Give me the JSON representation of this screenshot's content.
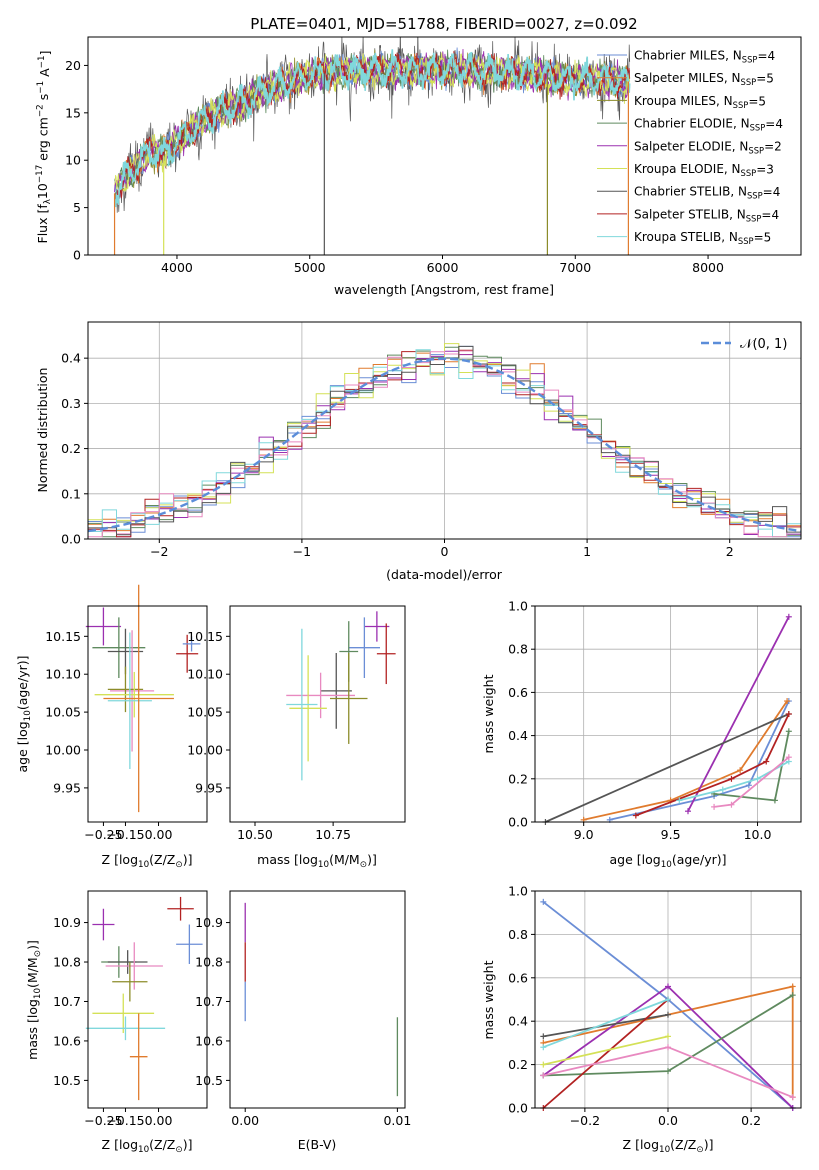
{
  "colors": [
    "#6b8ed6",
    "#e07b2e",
    "#8c8c2a",
    "#5f8a5f",
    "#9b30b0",
    "#d4e157",
    "#555555",
    "#b22222",
    "#80d8dc",
    "#e889c0"
  ],
  "chart_data": [
    {
      "type": "line",
      "title": "PLATE=0401, MJD=51788, FIBERID=0027, z=0.092",
      "xlabel": "wavelength [Angstrom, rest frame]",
      "ylabel": "Flux [f_λ10^-17 erg cm^-2 s^-1 A^-1]",
      "xlim": [
        3330,
        8700
      ],
      "ylim": [
        0,
        23
      ],
      "xticks": [
        "4000",
        "5000",
        "6000",
        "7000",
        "8000"
      ],
      "yticks": [
        "0",
        "5",
        "10",
        "15",
        "20"
      ],
      "legend_position": "right",
      "legend": [
        "Chabrier MILES, N_SSP=4",
        "Salpeter MILES, N_SSP=5",
        "Kroupa MILES, N_SSP=5",
        "Chabrier ELODIE, N_SSP=4",
        "Salpeter ELODIE, N_SSP=2",
        "Kroupa ELODIE, N_SSP=3",
        "Chabrier STELIB, N_SSP=4",
        "Salpeter STELIB, N_SSP=4",
        "Kroupa STELIB, N_SSP=5"
      ],
      "series_shape_approx": {
        "x": [
          3530,
          3600,
          3700,
          3800,
          3900,
          4000,
          4100,
          4200,
          4300,
          4400,
          4500,
          4600,
          4700,
          4800,
          4900,
          5000,
          5200,
          5400,
          5600,
          5800,
          6000,
          6200,
          6400,
          6600,
          6800,
          7000,
          7200,
          7400
        ],
        "y": [
          6.5,
          8,
          9.5,
          11,
          10.5,
          12,
          13,
          14.2,
          15,
          15.5,
          16,
          17,
          17.5,
          18,
          18.5,
          19,
          19.3,
          19.5,
          19.5,
          19.4,
          19.5,
          19.5,
          19.3,
          19.2,
          18.8,
          18.5,
          18.5,
          18.3
        ]
      }
    },
    {
      "type": "histogram",
      "xlabel": "(data-model)/error",
      "ylabel": "Normed distribution",
      "xlim": [
        -2.5,
        2.5
      ],
      "ylim": [
        0,
        0.48
      ],
      "xticks": [
        "−2",
        "−1",
        "0",
        "1",
        "2"
      ],
      "yticks": [
        "0.0",
        "0.1",
        "0.2",
        "0.3",
        "0.4"
      ],
      "grid": true,
      "legend": [
        "𝒩(0, 1)"
      ],
      "legend_position": "top-right",
      "reference_curve": "standard normal pdf"
    },
    {
      "type": "scatter",
      "xlabel": "Z [log10(Z/Z⊙)]",
      "ylabel": "age  [log10(age/yr)]",
      "xlim": [
        -0.32,
        0.22
      ],
      "ylim": [
        9.905,
        10.19
      ],
      "xticks": [
        "−0.25",
        "−0.15",
        "0.00"
      ],
      "yticks": [
        "9.95",
        "10.00",
        "10.05",
        "10.10",
        "10.15"
      ],
      "points": [
        {
          "x": -0.25,
          "y": 10.163,
          "xerr": 0.08,
          "yerr": 0.025
        },
        {
          "x": 0.13,
          "y": 10.127,
          "xerr": 0.05,
          "yerr": 0.025
        },
        {
          "x": 0.15,
          "y": 10.14,
          "xerr": 0.04,
          "yerr": 0.01
        },
        {
          "x": -0.18,
          "y": 10.135,
          "xerr": 0.12,
          "yerr": 0.04
        },
        {
          "x": -0.15,
          "y": 10.13,
          "xerr": 0.08,
          "yerr": 0.03
        },
        {
          "x": -0.12,
          "y": 10.078,
          "xerr": 0.1,
          "yerr": 0.08
        },
        {
          "x": -0.15,
          "y": 10.08,
          "xerr": 0.08,
          "yerr": 0.03
        },
        {
          "x": -0.11,
          "y": 10.073,
          "xerr": 0.18,
          "yerr": 0.03
        },
        {
          "x": -0.13,
          "y": 10.065,
          "xerr": 0.1,
          "yerr": 0.09
        },
        {
          "x": -0.09,
          "y": 10.068,
          "xerr": 0.16,
          "yerr": 0.15
        }
      ]
    },
    {
      "type": "scatter",
      "xlabel": "mass [log10(M/M⊙)]",
      "ylabel": "",
      "xlim": [
        10.42,
        10.98
      ],
      "ylim": [
        9.905,
        10.19
      ],
      "xticks": [
        "10.50",
        "10.75"
      ],
      "yticks": [
        "9.95",
        "10.00",
        "10.05",
        "10.10",
        "10.15"
      ],
      "points": [
        {
          "x": 10.89,
          "y": 10.163,
          "xerr": 0.04,
          "yerr": 0.02
        },
        {
          "x": 10.92,
          "y": 10.127,
          "xerr": 0.03,
          "yerr": 0.04
        },
        {
          "x": 10.85,
          "y": 10.135,
          "xerr": 0.05,
          "yerr": 0.04
        },
        {
          "x": 10.8,
          "y": 10.13,
          "xerr": 0.03,
          "yerr": 0.04
        },
        {
          "x": 10.76,
          "y": 10.078,
          "xerr": 0.05,
          "yerr": 0.05
        },
        {
          "x": 10.71,
          "y": 10.072,
          "xerr": 0.11,
          "yerr": 0.03
        },
        {
          "x": 10.8,
          "y": 10.068,
          "xerr": 0.06,
          "yerr": 0.06
        },
        {
          "x": 10.67,
          "y": 10.055,
          "xerr": 0.06,
          "yerr": 0.07
        },
        {
          "x": 10.65,
          "y": 10.06,
          "xerr": 0.05,
          "yerr": 0.1
        }
      ]
    },
    {
      "type": "line",
      "xlabel": "age  [log10(age/yr)]",
      "ylabel": "mass weight",
      "xlim": [
        8.72,
        10.25
      ],
      "ylim": [
        0,
        1
      ],
      "xticks": [
        "9.0",
        "9.5",
        "10.0"
      ],
      "yticks": [
        "0.0",
        "0.2",
        "0.4",
        "0.6",
        "0.8",
        "1.0"
      ],
      "grid": true,
      "series": [
        {
          "x": [
            9.15,
            9.75,
            9.95,
            10.18
          ],
          "y": [
            0.01,
            0.12,
            0.17,
            0.56
          ]
        },
        {
          "x": [
            9.0,
            9.5,
            9.9,
            10.17
          ],
          "y": [
            0.01,
            0.1,
            0.24,
            0.56
          ]
        },
        {
          "x": [
            9.6,
            10.18
          ],
          "y": [
            0.05,
            0.95
          ]
        },
        {
          "x": [
            9.75,
            10.1,
            10.18
          ],
          "y": [
            0.13,
            0.1,
            0.42
          ]
        },
        {
          "x": [
            8.78,
            10.18
          ],
          "y": [
            0.0,
            0.5
          ]
        },
        {
          "x": [
            9.3,
            9.85,
            10.05,
            10.18
          ],
          "y": [
            0.03,
            0.2,
            0.28,
            0.5
          ]
        },
        {
          "x": [
            9.55,
            9.8,
            10.0,
            10.18
          ],
          "y": [
            0.1,
            0.15,
            0.2,
            0.28
          ]
        },
        {
          "x": [
            9.75,
            9.85,
            10.18
          ],
          "y": [
            0.07,
            0.08,
            0.3
          ]
        }
      ]
    },
    {
      "type": "scatter",
      "xlabel": "Z [log10(Z/Z⊙)]",
      "ylabel": "mass [log10(M/M⊙)]",
      "xlim": [
        -0.32,
        0.22
      ],
      "ylim": [
        10.43,
        10.98
      ],
      "xticks": [
        "−0.25",
        "−0.15",
        "0.00"
      ],
      "yticks": [
        "10.5",
        "10.6",
        "10.7",
        "10.8",
        "10.9"
      ],
      "points": [
        {
          "x": -0.25,
          "y": 10.895,
          "xerr": 0.05,
          "yerr": 0.04
        },
        {
          "x": 0.1,
          "y": 10.935,
          "xerr": 0.06,
          "yerr": 0.03
        },
        {
          "x": 0.14,
          "y": 10.845,
          "xerr": 0.06,
          "yerr": 0.05
        },
        {
          "x": -0.18,
          "y": 10.8,
          "xerr": 0.08,
          "yerr": 0.04
        },
        {
          "x": -0.14,
          "y": 10.8,
          "xerr": 0.09,
          "yerr": 0.03
        },
        {
          "x": -0.11,
          "y": 10.79,
          "xerr": 0.13,
          "yerr": 0.06
        },
        {
          "x": -0.13,
          "y": 10.75,
          "xerr": 0.08,
          "yerr": 0.05
        },
        {
          "x": -0.16,
          "y": 10.67,
          "xerr": 0.14,
          "yerr": 0.05
        },
        {
          "x": -0.15,
          "y": 10.632,
          "xerr": 0.18,
          "yerr": 0.03
        },
        {
          "x": -0.09,
          "y": 10.56,
          "xerr": 0.04,
          "yerr": 0.11
        }
      ]
    },
    {
      "type": "scatter",
      "xlabel": "E(B-V)",
      "ylabel": "",
      "xlim": [
        -0.001,
        0.0105
      ],
      "ylim": [
        10.43,
        10.98
      ],
      "xticks": [
        "0.00",
        "0.01"
      ],
      "yticks": [
        "10.5",
        "10.6",
        "10.7",
        "10.8",
        "10.9"
      ],
      "points": [
        {
          "x": 0.0,
          "y": 10.9,
          "yerr": 0.05
        },
        {
          "x": 0.0,
          "y": 10.8,
          "yerr": 0.05
        },
        {
          "x": 0.0,
          "y": 10.7,
          "yerr": 0.05
        },
        {
          "x": 0.01,
          "y": 10.56,
          "yerr": 0.1
        }
      ]
    },
    {
      "type": "line",
      "xlabel": "Z [log10(Z/Z⊙)]",
      "ylabel": "mass weight",
      "xlim": [
        -0.32,
        0.32
      ],
      "ylim": [
        0,
        1
      ],
      "xticks": [
        "−0.2",
        "0.0",
        "0.2"
      ],
      "yticks": [
        "0.0",
        "0.2",
        "0.4",
        "0.6",
        "0.8",
        "1.0"
      ],
      "grid": true,
      "series": [
        {
          "x": [
            -0.3,
            0.0,
            0.3
          ],
          "y": [
            0.95,
            0.5,
            0.0
          ]
        },
        {
          "x": [
            -0.3,
            0.3,
            0.3
          ],
          "y": [
            0.3,
            0.56,
            0.05
          ]
        },
        {
          "x": [
            -0.3,
            0.0,
            0.3
          ],
          "y": [
            0.15,
            0.56,
            0.0
          ]
        },
        {
          "x": [
            -0.3,
            0.0,
            0.3
          ],
          "y": [
            0.15,
            0.17,
            0.52
          ]
        },
        {
          "x": [
            -0.3,
            0.0
          ],
          "y": [
            0.33,
            0.43
          ]
        },
        {
          "x": [
            -0.3,
            0.0
          ],
          "y": [
            0.0,
            0.5
          ]
        },
        {
          "x": [
            -0.3,
            0.0
          ],
          "y": [
            0.28,
            0.5
          ]
        },
        {
          "x": [
            -0.3,
            0.0,
            0.3
          ],
          "y": [
            0.15,
            0.28,
            0.05
          ]
        },
        {
          "x": [
            -0.3,
            0.0
          ],
          "y": [
            0.2,
            0.33
          ]
        }
      ]
    }
  ]
}
